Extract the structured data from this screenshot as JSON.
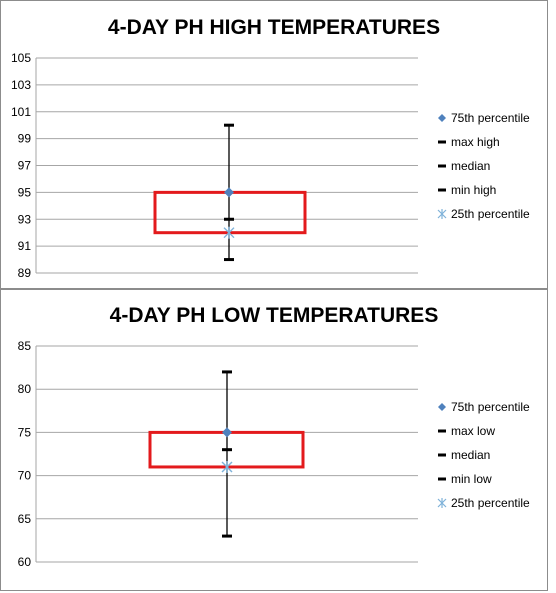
{
  "chart_data": [
    {
      "type": "box",
      "title": "4-DAY PH HIGH TEMPERATURES",
      "ylim": [
        89,
        105
      ],
      "yticks": [
        89,
        91,
        93,
        95,
        97,
        99,
        101,
        103,
        105
      ],
      "grid": true,
      "legend_position": "right",
      "values": {
        "p75": 95,
        "max": 100,
        "median": 93,
        "min": 90,
        "p25": 92
      },
      "legend": [
        {
          "key": "p75",
          "label": "75th percentile",
          "marker": "diamond"
        },
        {
          "key": "max",
          "label": "max high",
          "marker": "dash"
        },
        {
          "key": "median",
          "label": "median",
          "marker": "dash"
        },
        {
          "key": "min",
          "label": "min high",
          "marker": "dash"
        },
        {
          "key": "p25",
          "label": "25th percentile",
          "marker": "asterisk"
        }
      ]
    },
    {
      "type": "box",
      "title": "4-DAY PH LOW TEMPERATURES",
      "ylim": [
        60,
        85
      ],
      "yticks": [
        60,
        65,
        70,
        75,
        80,
        85
      ],
      "grid": true,
      "legend_position": "right",
      "values": {
        "p75": 75,
        "max": 82,
        "median": 73,
        "min": 63,
        "p25": 71
      },
      "legend": [
        {
          "key": "p75",
          "label": "75th percentile",
          "marker": "diamond"
        },
        {
          "key": "max",
          "label": "max low",
          "marker": "dash"
        },
        {
          "key": "median",
          "label": "median",
          "marker": "dash"
        },
        {
          "key": "min",
          "label": "min low",
          "marker": "dash"
        },
        {
          "key": "p25",
          "label": "25th percentile",
          "marker": "asterisk"
        }
      ]
    }
  ],
  "colors": {
    "box": "#e31a1c",
    "p75_marker": "#4f81bd",
    "p25_marker": "#7fb2d9",
    "grid": "#a6a6a6",
    "whisker": "#000000"
  }
}
